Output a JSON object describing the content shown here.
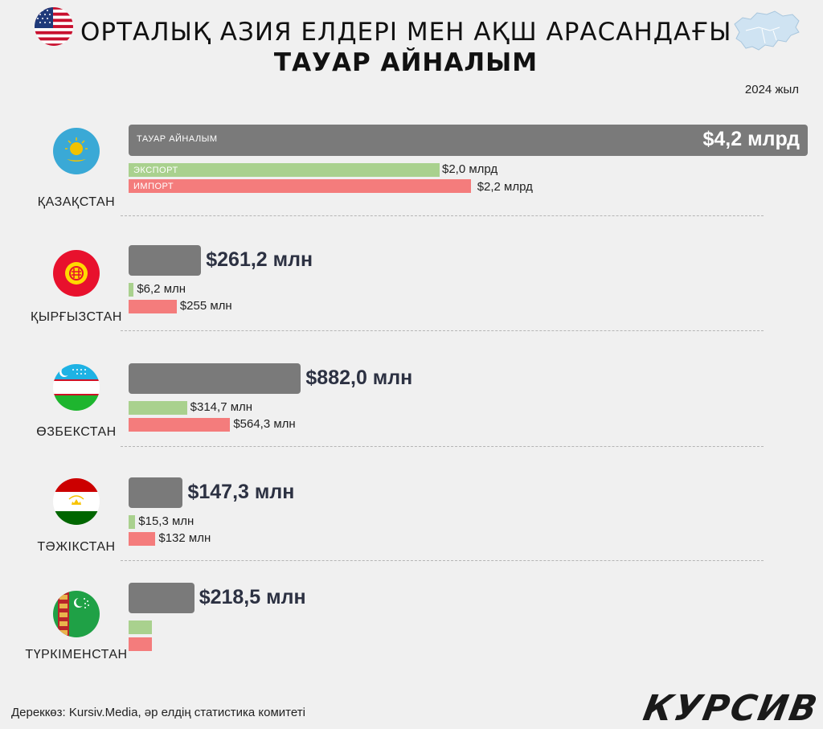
{
  "header": {
    "title_line1": "ОРТАЛЫҚ АЗИЯ ЕЛДЕРІ МЕН АҚШ АРАСАНДАҒЫ",
    "title_line2": "ТАУАР АЙНАЛЫМ",
    "year": "2024 жыл"
  },
  "chart_data": {
    "type": "bar",
    "orientation": "horizontal",
    "categories": [
      "ҚАЗАҚСТАН",
      "ҚЫРҒЫЗСТАН",
      "ӨЗБЕКСТАН",
      "ТӘЖІКСТАН",
      "ТҮРКІМЕНСТАН"
    ],
    "unit": "млн $",
    "series": [
      {
        "name": "ТАУАР АЙНАЛЫМ",
        "values": [
          4200,
          261.2,
          882.0,
          147.3,
          218.5
        ],
        "labels": [
          "$4,2 млрд",
          "$261,2 млн",
          "$882,0 млн",
          "$147,3 млн",
          "$218,5 млн"
        ],
        "color": "#7a7a7a"
      },
      {
        "name": "ЭКСПОРТ",
        "values": [
          2000,
          6.2,
          314.7,
          15.3,
          null
        ],
        "labels": [
          "$2,0 млрд",
          "$6,2 млн",
          "$314,7 млн",
          "$15,3 млн",
          ""
        ],
        "color": "#a9d18e"
      },
      {
        "name": "ИМПОРТ",
        "values": [
          2200,
          255,
          564.3,
          132,
          null
        ],
        "labels": [
          "$2,2 млрд",
          "$255 млн",
          "$564,3 млн",
          "$132 млн",
          ""
        ],
        "color": "#f47c7c"
      }
    ]
  },
  "footer": {
    "source": "Дереккөз: Kursiv.Media, әр елдің статистика комитеті",
    "brand": "КУРСИВ"
  },
  "icons": [
    "us-flag-icon",
    "central-asia-map-icon",
    "kazakhstan-flag-icon",
    "kyrgyzstan-flag-icon",
    "uzbekistan-flag-icon",
    "tajikistan-flag-icon",
    "turkmenistan-flag-icon"
  ]
}
